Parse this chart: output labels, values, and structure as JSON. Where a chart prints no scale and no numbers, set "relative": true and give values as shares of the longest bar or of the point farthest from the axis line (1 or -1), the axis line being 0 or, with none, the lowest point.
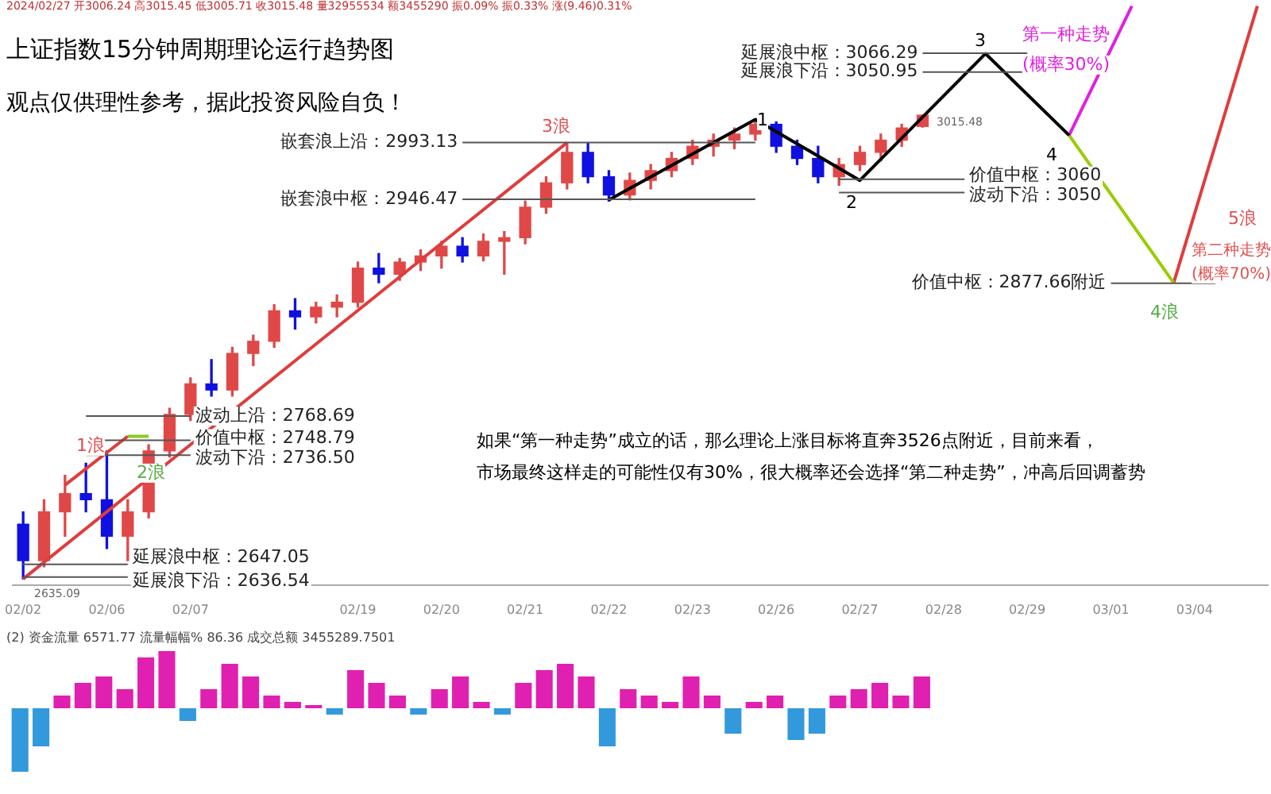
{
  "chart_data": [
    {
      "type": "candlestick",
      "title": "上证指数15分钟周期理论运行趋势图",
      "subtitle": "观点仅供理性参考，据此投资风险自负！",
      "categories": [
        "02/02",
        null,
        null,
        null,
        "02/06",
        null,
        null,
        null,
        "02/07",
        null,
        null,
        null,
        null,
        null,
        null,
        null,
        "02/19",
        null,
        null,
        null,
        "02/20",
        null,
        null,
        null,
        "02/21",
        null,
        null,
        null,
        "02/22",
        null,
        null,
        null,
        "02/23",
        null,
        null,
        null,
        "02/26",
        null,
        null,
        null,
        "02/27",
        null,
        null,
        null,
        "02/28",
        null,
        null,
        null,
        "02/29",
        null,
        null,
        null,
        "03/01",
        null,
        null,
        null,
        "03/04",
        null,
        null,
        null
      ],
      "ohlc": [
        [
          2680,
          2690,
          2635.09,
          2650
        ],
        [
          2650,
          2700,
          2645,
          2690
        ],
        [
          2690,
          2720,
          2670,
          2705
        ],
        [
          2705,
          2730,
          2690,
          2700
        ],
        [
          2700,
          2740,
          2660,
          2670
        ],
        [
          2670,
          2700,
          2650,
          2690
        ],
        [
          2690,
          2745,
          2685,
          2740
        ],
        [
          2740,
          2775,
          2735,
          2770
        ],
        [
          2770,
          2800,
          2765,
          2795
        ],
        [
          2795,
          2815,
          2785,
          2790
        ],
        [
          2790,
          2825,
          2785,
          2820
        ],
        [
          2820,
          2835,
          2810,
          2830
        ],
        [
          2830,
          2860,
          2825,
          2855
        ],
        [
          2855,
          2865,
          2840,
          2850
        ],
        [
          2850,
          2862,
          2845,
          2858
        ],
        [
          2858,
          2868,
          2850,
          2862
        ],
        [
          2862,
          2895,
          2858,
          2890
        ],
        [
          2890,
          2902,
          2878,
          2885
        ],
        [
          2885,
          2898,
          2880,
          2895
        ],
        [
          2895,
          2905,
          2888,
          2900
        ],
        [
          2900,
          2912,
          2890,
          2908
        ],
        [
          2908,
          2915,
          2895,
          2900
        ],
        [
          2900,
          2918,
          2896,
          2912
        ],
        [
          2912,
          2920,
          2885,
          2915
        ],
        [
          2915,
          2945,
          2910,
          2940
        ],
        [
          2940,
          2965,
          2935,
          2960
        ],
        [
          2960,
          2993,
          2955,
          2985
        ],
        [
          2985,
          2993,
          2960,
          2965
        ],
        [
          2965,
          2970,
          2945,
          2950
        ],
        [
          2950,
          2968,
          2946,
          2962
        ],
        [
          2962,
          2975,
          2955,
          2970
        ],
        [
          2970,
          2985,
          2965,
          2980
        ],
        [
          2980,
          2995,
          2975,
          2990
        ],
        [
          2990,
          3000,
          2982,
          2995
        ],
        [
          2995,
          3005,
          2988,
          3000
        ],
        [
          3000,
          3012,
          2995,
          3008
        ],
        [
          3008,
          3010,
          2985,
          2990
        ],
        [
          2990,
          2995,
          2975,
          2980
        ],
        [
          2980,
          2990,
          2960,
          2965
        ],
        [
          2965,
          2980,
          2958,
          2975
        ],
        [
          2975,
          2990,
          2970,
          2985
        ],
        [
          2985,
          3000,
          2978,
          2995
        ],
        [
          2995,
          3008,
          2990,
          3005
        ],
        [
          3006.24,
          3015.48,
          3005.71,
          3015.48
        ],
        null,
        null,
        null,
        null,
        null,
        null,
        null,
        null,
        null,
        null,
        null,
        null,
        null,
        null,
        null,
        null
      ],
      "colors": [
        "#1010e0",
        "#e04848",
        "#e04848",
        "#1010e0",
        "#1010e0",
        "#e04848",
        "#e04848",
        "#e04848",
        "#e04848",
        "#1010e0",
        "#e04848",
        "#e04848",
        "#e04848",
        "#1010e0",
        "#e04848",
        "#e04848",
        "#e04848",
        "#1010e0",
        "#e04848",
        "#e04848",
        "#e04848",
        "#1010e0",
        "#e04848",
        "#e04848",
        "#e04848",
        "#e04848",
        "#e04848",
        "#1010e0",
        "#1010e0",
        "#e04848",
        "#e04848",
        "#e04848",
        "#e04848",
        "#e04848",
        "#e04848",
        "#e04848",
        "#1010e0",
        "#1010e0",
        "#1010e0",
        "#e04848",
        "#e04848",
        "#e04848",
        "#e04848",
        "#e04848",
        null,
        null,
        null,
        null,
        null,
        null,
        null,
        null,
        null,
        null,
        null,
        null,
        null,
        null,
        null,
        null
      ],
      "series": [
        {
          "type": "line",
          "color": "#e03c3c",
          "values": [
            2635,
            null,
            null,
            null,
            null,
            null,
            null,
            null,
            null,
            null,
            null,
            null,
            null,
            null,
            null,
            null,
            null,
            null,
            null,
            null,
            null,
            null,
            null,
            null,
            null,
            null,
            2993,
            null,
            null,
            null,
            null,
            null,
            null,
            null,
            null,
            null,
            null,
            null,
            null,
            null,
            null,
            null,
            null,
            null,
            null,
            null,
            null,
            null,
            null,
            null,
            null,
            null,
            null,
            null,
            null,
            null,
            null,
            null,
            null,
            null
          ]
        },
        {
          "type": "line",
          "color": "#e03c3c",
          "values": [
            null,
            null,
            2712,
            null,
            null,
            2752,
            null,
            null,
            null,
            null,
            null,
            null,
            null,
            null,
            null,
            null,
            null,
            null,
            null,
            null,
            null,
            null,
            null,
            null,
            null,
            null,
            null,
            null,
            null,
            null,
            null,
            null,
            null,
            null,
            null,
            null,
            null,
            null,
            null,
            null,
            null,
            null,
            null,
            null,
            null,
            null,
            null,
            null,
            null,
            null,
            null,
            null,
            null,
            null,
            null,
            null,
            null,
            null,
            null,
            null
          ]
        },
        {
          "type": "line",
          "color": "#88cc22",
          "values": [
            null,
            null,
            null,
            null,
            null,
            2752,
            2752,
            null,
            null,
            null,
            null,
            null,
            null,
            null,
            null,
            null,
            null,
            null,
            null,
            null,
            null,
            null,
            null,
            null,
            null,
            null,
            null,
            null,
            null,
            null,
            null,
            null,
            null,
            null,
            null,
            null,
            null,
            null,
            null,
            null,
            null,
            null,
            null,
            null,
            null,
            null,
            null,
            null,
            null,
            null,
            null,
            null,
            null,
            null,
            null,
            null,
            null,
            null,
            null,
            null
          ]
        },
        {
          "type": "line",
          "color": "#000000",
          "values": [
            null,
            null,
            null,
            null,
            null,
            null,
            null,
            null,
            null,
            null,
            null,
            null,
            null,
            null,
            null,
            null,
            null,
            null,
            null,
            null,
            null,
            null,
            null,
            null,
            null,
            null,
            null,
            null,
            2946,
            null,
            null,
            null,
            null,
            null,
            null,
            3012,
            null,
            null,
            null,
            null,
            2962,
            null,
            null,
            null,
            null,
            null,
            3066,
            null,
            null,
            null,
            2999,
            null,
            null,
            null,
            null,
            null,
            null,
            null,
            null,
            null
          ]
        },
        {
          "type": "line",
          "color": "#e020e0",
          "values": [
            null,
            null,
            null,
            null,
            null,
            null,
            null,
            null,
            null,
            null,
            null,
            null,
            null,
            null,
            null,
            null,
            null,
            null,
            null,
            null,
            null,
            null,
            null,
            null,
            null,
            null,
            null,
            null,
            null,
            null,
            null,
            null,
            null,
            null,
            null,
            null,
            null,
            null,
            null,
            null,
            null,
            null,
            null,
            null,
            null,
            null,
            null,
            null,
            null,
            null,
            2999,
            null,
            null,
            3105,
            null,
            null,
            null,
            null,
            null,
            null
          ]
        },
        {
          "type": "line",
          "color": "#99cc00",
          "values": [
            null,
            null,
            null,
            null,
            null,
            null,
            null,
            null,
            null,
            null,
            null,
            null,
            null,
            null,
            null,
            null,
            null,
            null,
            null,
            null,
            null,
            null,
            null,
            null,
            null,
            null,
            null,
            null,
            null,
            null,
            null,
            null,
            null,
            null,
            null,
            null,
            null,
            null,
            null,
            null,
            null,
            null,
            null,
            null,
            null,
            null,
            null,
            null,
            null,
            null,
            2999,
            null,
            null,
            null,
            null,
            2878,
            null,
            null,
            null,
            null
          ]
        },
        {
          "type": "line",
          "color": "#e03c3c",
          "values": [
            null,
            null,
            null,
            null,
            null,
            null,
            null,
            null,
            null,
            null,
            null,
            null,
            null,
            null,
            null,
            null,
            null,
            null,
            null,
            null,
            null,
            null,
            null,
            null,
            null,
            null,
            null,
            null,
            null,
            null,
            null,
            null,
            null,
            null,
            null,
            null,
            null,
            null,
            null,
            null,
            null,
            null,
            null,
            null,
            null,
            null,
            null,
            null,
            null,
            null,
            null,
            null,
            null,
            null,
            null,
            2878,
            null,
            null,
            null,
            3105
          ]
        }
      ],
      "ref_lines": [
        {
          "axis": "y",
          "value": 2993.13,
          "label": "嵌套浪上沿：2993.13",
          "color": "#555555"
        },
        {
          "axis": "y",
          "value": 2946.47,
          "label": "嵌套浪中枢：2946.47",
          "color": "#555555"
        },
        {
          "axis": "y",
          "value": 3066.29,
          "label": "延展浪中枢：3066.29",
          "color": "#555555"
        },
        {
          "axis": "y",
          "value": 3050.95,
          "label": "延展浪下沿：3050.95",
          "color": "#555555"
        },
        {
          "axis": "y",
          "value": 2963,
          "label": "价值中枢：3060",
          "color": "#555555"
        },
        {
          "axis": "y",
          "value": 2952,
          "label": "波动下沿：3050",
          "color": "#555555"
        },
        {
          "axis": "y",
          "value": 2877.66,
          "label": "价值中枢：2877.66附近",
          "color": "#555555"
        },
        {
          "axis": "y",
          "value": 2768.69,
          "label": "波动上沿：2768.69",
          "color": "#555555"
        },
        {
          "axis": "y",
          "value": 2748.79,
          "label": "价值中枢：2748.79",
          "color": "#555555"
        },
        {
          "axis": "y",
          "value": 2736.5,
          "label": "波动下沿：2736.50",
          "color": "#555555"
        },
        {
          "axis": "y",
          "value": 2647.05,
          "label": "延展浪中枢：2647.05",
          "color": "#555555"
        },
        {
          "axis": "y",
          "value": 2636.54,
          "label": "延展浪下沿：2636.54",
          "color": "#555555"
        }
      ],
      "annotations": [
        "2024/02/27 开3006.24 高3015.45 低3005.71 收3015.48 量32955534 额3455290 振0.09% 振0.33% 涨(9.46)0.31%",
        "如果“第一种走势”成立的话，那么理论上涨目标将直奔3526点附近，目前来看，",
        "市场最终这样走的可能性仅有30%，很大概率还会选择“第二种走势”，冲高后回调蓄势",
        "3浪",
        "1浪",
        "2浪",
        "1",
        "2",
        "3",
        "4",
        "4浪",
        "5浪",
        "第一种走势",
        "(概率30%)",
        "第二种走势",
        "(概率70%)",
        "3015.48",
        "2635.09"
      ],
      "ylim": [
        2630,
        3110
      ],
      "tick_labels": "x",
      "grid": false,
      "legend": false
    },
    {
      "type": "bar",
      "relative": true,
      "title": "(2) 资金流量 6571.77 流量幅幅% 86.36 成交总额 3455289.7501",
      "categories": [
        null,
        null,
        null,
        null,
        null,
        null,
        null,
        null,
        null,
        null,
        null,
        null,
        null,
        null,
        null,
        null,
        null,
        null,
        null,
        null,
        null,
        null,
        null,
        null,
        null,
        null,
        null,
        null,
        null,
        null,
        null,
        null,
        null,
        null,
        null,
        null,
        null,
        null,
        null,
        null,
        null,
        null,
        null,
        null,
        null,
        null,
        null,
        null,
        null,
        null,
        null,
        null,
        null,
        null,
        null,
        null,
        null,
        null,
        null,
        null
      ],
      "values": [
        -1,
        -0.6,
        0.2,
        0.4,
        0.5,
        0.3,
        0.8,
        0.9,
        -0.2,
        0.3,
        0.7,
        0.5,
        0.2,
        0.1,
        0.05,
        -0.1,
        0.6,
        0.4,
        0.2,
        -0.1,
        0.3,
        0.5,
        0.1,
        -0.1,
        0.4,
        0.6,
        0.7,
        0.5,
        -0.6,
        0.3,
        0.2,
        0.1,
        0.5,
        0.2,
        -0.4,
        0.1,
        0.2,
        -0.5,
        -0.4,
        0.2,
        0.3,
        0.4,
        0.2,
        0.5,
        null,
        null,
        null,
        null,
        null,
        null,
        null,
        null,
        null,
        null,
        null,
        null,
        null,
        null,
        null,
        null
      ],
      "colors": [
        "#3399dd",
        "#3399dd",
        "#e020b0",
        "#e020b0",
        "#e020b0",
        "#e020b0",
        "#e020b0",
        "#e020b0",
        "#3399dd",
        "#e020b0",
        "#e020b0",
        "#e020b0",
        "#e020b0",
        "#e020b0",
        "#e020b0",
        "#3399dd",
        "#e020b0",
        "#e020b0",
        "#e020b0",
        "#3399dd",
        "#e020b0",
        "#e020b0",
        "#e020b0",
        "#3399dd",
        "#e020b0",
        "#e020b0",
        "#e020b0",
        "#e020b0",
        "#3399dd",
        "#e020b0",
        "#e020b0",
        "#e020b0",
        "#e020b0",
        "#e020b0",
        "#3399dd",
        "#e020b0",
        "#e020b0",
        "#3399dd",
        "#3399dd",
        "#e020b0",
        "#e020b0",
        "#e020b0",
        "#e020b0",
        "#e020b0",
        null,
        null,
        null,
        null,
        null,
        null,
        null,
        null,
        null,
        null,
        null,
        null,
        null,
        null,
        null,
        null
      ],
      "tick_labels": false,
      "grid": false,
      "legend": false
    }
  ]
}
